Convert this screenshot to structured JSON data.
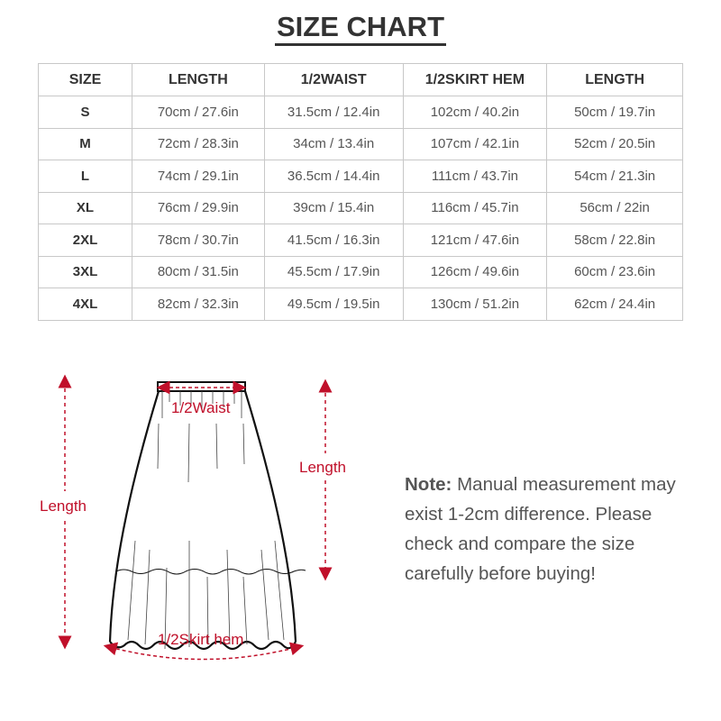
{
  "title": "SIZE CHART",
  "table": {
    "headers": [
      "SIZE",
      "LENGTH",
      "1/2WAIST",
      "1/2SKIRT HEM",
      "LENGTH"
    ],
    "rows": [
      [
        "S",
        "70cm / 27.6in",
        "31.5cm / 12.4in",
        "102cm / 40.2in",
        "50cm / 19.7in"
      ],
      [
        "M",
        "72cm / 28.3in",
        "34cm / 13.4in",
        "107cm / 42.1in",
        "52cm / 20.5in"
      ],
      [
        "L",
        "74cm / 29.1in",
        "36.5cm / 14.4in",
        "111cm / 43.7in",
        "54cm / 21.3in"
      ],
      [
        "XL",
        "76cm / 29.9in",
        "39cm / 15.4in",
        "116cm / 45.7in",
        "56cm / 22in"
      ],
      [
        "2XL",
        "78cm / 30.7in",
        "41.5cm / 16.3in",
        "121cm / 47.6in",
        "58cm / 22.8in"
      ],
      [
        "3XL",
        "80cm / 31.5in",
        "45.5cm / 17.9in",
        "126cm / 49.6in",
        "60cm / 23.6in"
      ],
      [
        "4XL",
        "82cm / 32.3in",
        "49.5cm / 19.5in",
        "130cm / 51.2in",
        "62cm / 24.4in"
      ]
    ]
  },
  "diagram": {
    "waist_label": "1/2Waist",
    "length_left_label": "Length",
    "length_right_label": "Length",
    "hem_label": "1/2Skirt hem",
    "accent_color": "#c0102a"
  },
  "note": {
    "label": "Note:",
    "text": " Manual measurement may exist 1-2cm difference. Please check and compare the size carefully before buying!"
  }
}
